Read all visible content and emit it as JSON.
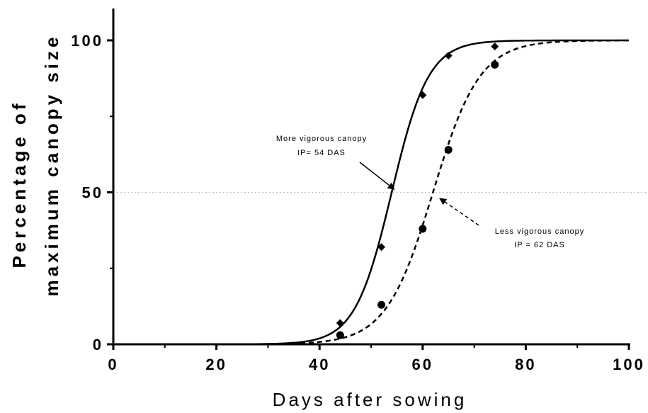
{
  "chart_data": {
    "type": "scatter",
    "xlabel": "Days after sowing",
    "ylabel_lines": [
      "Percentage of",
      "maximum canopy size"
    ],
    "xlim": [
      0,
      100
    ],
    "ylim": [
      0,
      100
    ],
    "xticks": [
      0,
      20,
      40,
      60,
      80,
      100
    ],
    "yticks": [
      0,
      50,
      100
    ],
    "reference_line": {
      "y": 50,
      "style": "dotted"
    },
    "series": [
      {
        "marker": "diamond",
        "line_style": "solid",
        "ip": 54,
        "points": [
          {
            "x": 44,
            "y": 7
          },
          {
            "x": 52,
            "y": 32
          },
          {
            "x": 60,
            "y": 82
          },
          {
            "x": 65,
            "y": 95
          },
          {
            "x": 74,
            "y": 98
          }
        ]
      },
      {
        "marker": "circle",
        "line_style": "dashed",
        "ip": 62,
        "points": [
          {
            "x": 44,
            "y": 3
          },
          {
            "x": 52,
            "y": 13
          },
          {
            "x": 60,
            "y": 38
          },
          {
            "x": 65,
            "y": 64
          },
          {
            "x": 74,
            "y": 92
          }
        ]
      }
    ],
    "annotations": [
      {
        "lines": [
          "More vigorous canopy",
          "IP= 54 DAS"
        ],
        "arrow_to": {
          "x": 54.5,
          "y": 51
        },
        "arrow_style": "solid"
      },
      {
        "lines": [
          "Less vigorous canopy",
          "IP = 62 DAS"
        ],
        "arrow_to": {
          "x": 62.5,
          "y": 48
        },
        "arrow_style": "dashed"
      }
    ]
  }
}
